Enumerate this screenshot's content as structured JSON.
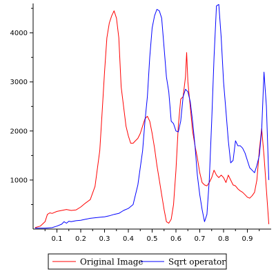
{
  "chart_data": {
    "type": "line",
    "title": "",
    "xlabel": "",
    "ylabel": "",
    "xlim": [
      0.0,
      1.0
    ],
    "ylim": [
      0,
      4600
    ],
    "x_ticks": [
      0.1,
      0.2,
      0.3,
      0.4,
      0.5,
      0.6,
      0.7,
      0.8,
      0.9
    ],
    "x_tick_labels": [
      "0.1",
      "0.2",
      "0.3",
      "0.4",
      "0.5",
      "0.6",
      "0.7",
      "0.8",
      "0.9"
    ],
    "y_ticks": [
      1000,
      2000,
      3000,
      4000
    ],
    "y_tick_labels": [
      "1000",
      "2000",
      "3000",
      "4000"
    ],
    "grid": false,
    "legend_position": "bottom",
    "series": [
      {
        "name": "Original Image",
        "color": "#ff0000",
        "points": [
          [
            0.008,
            30
          ],
          [
            0.03,
            60
          ],
          [
            0.05,
            150
          ],
          [
            0.06,
            300
          ],
          [
            0.07,
            330
          ],
          [
            0.08,
            320
          ],
          [
            0.09,
            340
          ],
          [
            0.1,
            360
          ],
          [
            0.12,
            380
          ],
          [
            0.14,
            400
          ],
          [
            0.16,
            380
          ],
          [
            0.18,
            390
          ],
          [
            0.2,
            450
          ],
          [
            0.22,
            530
          ],
          [
            0.24,
            600
          ],
          [
            0.26,
            870
          ],
          [
            0.28,
            1600
          ],
          [
            0.29,
            2400
          ],
          [
            0.3,
            3200
          ],
          [
            0.31,
            3900
          ],
          [
            0.32,
            4200
          ],
          [
            0.33,
            4350
          ],
          [
            0.34,
            4450
          ],
          [
            0.35,
            4300
          ],
          [
            0.36,
            3900
          ],
          [
            0.37,
            2900
          ],
          [
            0.38,
            2500
          ],
          [
            0.39,
            2100
          ],
          [
            0.4,
            1900
          ],
          [
            0.41,
            1750
          ],
          [
            0.42,
            1750
          ],
          [
            0.43,
            1800
          ],
          [
            0.44,
            1850
          ],
          [
            0.45,
            1950
          ],
          [
            0.46,
            2100
          ],
          [
            0.47,
            2250
          ],
          [
            0.48,
            2300
          ],
          [
            0.49,
            2200
          ],
          [
            0.5,
            1950
          ],
          [
            0.51,
            1650
          ],
          [
            0.52,
            1300
          ],
          [
            0.53,
            1000
          ],
          [
            0.54,
            700
          ],
          [
            0.55,
            400
          ],
          [
            0.56,
            150
          ],
          [
            0.57,
            120
          ],
          [
            0.58,
            200
          ],
          [
            0.59,
            500
          ],
          [
            0.6,
            1200
          ],
          [
            0.61,
            2100
          ],
          [
            0.62,
            2650
          ],
          [
            0.63,
            2700
          ],
          [
            0.64,
            3100
          ],
          [
            0.645,
            3600
          ],
          [
            0.65,
            3000
          ],
          [
            0.66,
            2500
          ],
          [
            0.67,
            2000
          ],
          [
            0.68,
            1700
          ],
          [
            0.69,
            1450
          ],
          [
            0.7,
            1150
          ],
          [
            0.71,
            950
          ],
          [
            0.72,
            900
          ],
          [
            0.73,
            880
          ],
          [
            0.74,
            950
          ],
          [
            0.75,
            1050
          ],
          [
            0.76,
            1200
          ],
          [
            0.77,
            1100
          ],
          [
            0.78,
            1050
          ],
          [
            0.79,
            1100
          ],
          [
            0.8,
            1050
          ],
          [
            0.81,
            950
          ],
          [
            0.82,
            1100
          ],
          [
            0.83,
            1000
          ],
          [
            0.84,
            900
          ],
          [
            0.85,
            880
          ],
          [
            0.86,
            820
          ],
          [
            0.87,
            780
          ],
          [
            0.88,
            750
          ],
          [
            0.89,
            700
          ],
          [
            0.9,
            650
          ],
          [
            0.91,
            630
          ],
          [
            0.92,
            680
          ],
          [
            0.93,
            750
          ],
          [
            0.94,
            1000
          ],
          [
            0.95,
            1600
          ],
          [
            0.96,
            2050
          ],
          [
            0.97,
            1500
          ],
          [
            0.98,
            800
          ],
          [
            0.99,
            100
          ]
        ]
      },
      {
        "name": "Sqrt operator",
        "color": "#0000ff",
        "points": [
          [
            0.008,
            20
          ],
          [
            0.05,
            20
          ],
          [
            0.08,
            30
          ],
          [
            0.1,
            60
          ],
          [
            0.12,
            100
          ],
          [
            0.13,
            150
          ],
          [
            0.14,
            120
          ],
          [
            0.15,
            160
          ],
          [
            0.16,
            150
          ],
          [
            0.18,
            170
          ],
          [
            0.2,
            180
          ],
          [
            0.22,
            200
          ],
          [
            0.24,
            220
          ],
          [
            0.26,
            230
          ],
          [
            0.28,
            240
          ],
          [
            0.3,
            250
          ],
          [
            0.32,
            270
          ],
          [
            0.34,
            300
          ],
          [
            0.36,
            320
          ],
          [
            0.38,
            380
          ],
          [
            0.4,
            420
          ],
          [
            0.42,
            500
          ],
          [
            0.44,
            900
          ],
          [
            0.46,
            1600
          ],
          [
            0.47,
            2200
          ],
          [
            0.48,
            2700
          ],
          [
            0.49,
            3500
          ],
          [
            0.5,
            4100
          ],
          [
            0.51,
            4350
          ],
          [
            0.52,
            4480
          ],
          [
            0.53,
            4450
          ],
          [
            0.54,
            4300
          ],
          [
            0.55,
            3700
          ],
          [
            0.56,
            3100
          ],
          [
            0.57,
            2800
          ],
          [
            0.58,
            2200
          ],
          [
            0.59,
            2150
          ],
          [
            0.6,
            2000
          ],
          [
            0.61,
            1980
          ],
          [
            0.62,
            2200
          ],
          [
            0.63,
            2700
          ],
          [
            0.64,
            2850
          ],
          [
            0.65,
            2800
          ],
          [
            0.66,
            2600
          ],
          [
            0.67,
            2200
          ],
          [
            0.68,
            1700
          ],
          [
            0.69,
            1100
          ],
          [
            0.7,
            700
          ],
          [
            0.71,
            400
          ],
          [
            0.72,
            150
          ],
          [
            0.73,
            300
          ],
          [
            0.74,
            1000
          ],
          [
            0.75,
            2200
          ],
          [
            0.76,
            3500
          ],
          [
            0.77,
            4550
          ],
          [
            0.78,
            4580
          ],
          [
            0.79,
            3900
          ],
          [
            0.8,
            3000
          ],
          [
            0.81,
            2400
          ],
          [
            0.82,
            1800
          ],
          [
            0.83,
            1350
          ],
          [
            0.84,
            1400
          ],
          [
            0.85,
            1800
          ],
          [
            0.86,
            1700
          ],
          [
            0.87,
            1700
          ],
          [
            0.88,
            1650
          ],
          [
            0.89,
            1550
          ],
          [
            0.9,
            1400
          ],
          [
            0.91,
            1250
          ],
          [
            0.92,
            1200
          ],
          [
            0.93,
            1150
          ],
          [
            0.94,
            1300
          ],
          [
            0.95,
            1500
          ],
          [
            0.96,
            2000
          ],
          [
            0.97,
            3200
          ],
          [
            0.98,
            2500
          ],
          [
            0.99,
            1000
          ]
        ]
      }
    ]
  }
}
